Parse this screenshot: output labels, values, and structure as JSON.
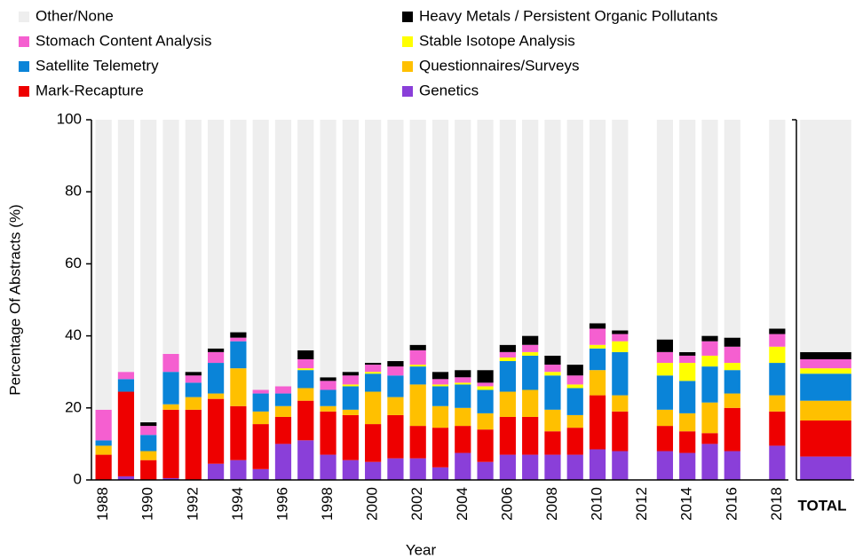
{
  "chart_data": [
    {
      "type": "bar",
      "stacked": true,
      "xlabel": "Year",
      "ylabel": "Percentage Of Abstracts (%)",
      "categories": [
        "1988",
        null,
        "1990",
        null,
        "1992",
        null,
        "1994",
        null,
        "1996",
        null,
        "1998",
        null,
        "2000",
        null,
        "2002",
        null,
        "2004",
        null,
        "2006",
        null,
        "2008",
        null,
        "2010",
        null,
        "2012",
        null,
        "2014",
        null,
        "2016",
        null,
        "2018"
      ],
      "ylim": [
        0,
        100
      ],
      "yticks": [
        0,
        20,
        40,
        60,
        80,
        100
      ],
      "series": [
        {
          "name": "Genetics",
          "color": "#8a3fd9",
          "values": [
            0,
            1,
            0,
            0.5,
            0,
            4.5,
            5.5,
            3,
            10,
            11,
            7,
            5.5,
            5,
            6,
            6,
            3.5,
            7.5,
            5,
            7,
            7,
            7,
            7,
            8.5,
            8,
            null,
            8,
            7.5,
            10,
            8,
            null,
            9.5
          ]
        },
        {
          "name": "Mark-Recapture",
          "color": "#ee0000",
          "values": [
            7,
            23.5,
            5.5,
            19,
            19.5,
            18,
            15,
            12.5,
            7.5,
            11,
            12,
            12.5,
            10.5,
            12,
            9,
            11,
            7.5,
            9,
            10.5,
            10.5,
            6.5,
            7.5,
            15,
            11,
            null,
            7,
            6,
            3,
            12,
            null,
            9.5
          ]
        },
        {
          "name": "Questionnaires/Surveys",
          "color": "#ffc000",
          "values": [
            2.5,
            0,
            2.5,
            1.5,
            3.5,
            1.5,
            10.5,
            3.5,
            3,
            3.5,
            1.5,
            1.5,
            9,
            5,
            11.5,
            6,
            5,
            4.5,
            7,
            7.5,
            6,
            3.5,
            7,
            4.5,
            null,
            4.5,
            5,
            8.5,
            4,
            null,
            4.5
          ]
        },
        {
          "name": "Satellite Telemetry",
          "color": "#0a84d8",
          "values": [
            1.5,
            3.5,
            4.5,
            9,
            4,
            8.5,
            7.5,
            5,
            3.5,
            5,
            4.5,
            6.5,
            5,
            6,
            5,
            5.5,
            6.5,
            6.5,
            8.5,
            9.5,
            9.5,
            7.5,
            6,
            12,
            null,
            9.5,
            9,
            10,
            6.5,
            null,
            9
          ]
        },
        {
          "name": "Stable Isotope Analysis",
          "color": "#ffff00",
          "values": [
            0,
            0,
            0,
            0,
            0,
            0,
            0,
            0,
            0,
            0.5,
            0,
            0.5,
            0.5,
            0,
            0.5,
            0.5,
            0.5,
            1,
            1,
            1,
            1,
            1,
            1,
            3,
            null,
            3.5,
            5,
            3,
            2,
            null,
            4.5
          ]
        },
        {
          "name": "Stomach Content Analysis",
          "color": "#f55fd0",
          "values": [
            8.5,
            2,
            2.5,
            5,
            2,
            3,
            1,
            1,
            2,
            2.5,
            2.5,
            2.5,
            2,
            2.5,
            4,
            1.5,
            1.5,
            1,
            1.5,
            2,
            2,
            2.5,
            4.5,
            2,
            null,
            3,
            2,
            4,
            4.5,
            null,
            3.5
          ]
        },
        {
          "name": "Heavy Metals / Persistent Organic Pollutants",
          "color": "#000000",
          "values": [
            0,
            0,
            1,
            0,
            1,
            1,
            1.5,
            0,
            0,
            2.5,
            1,
            1,
            0.5,
            1.5,
            1.5,
            2,
            2,
            3.5,
            2,
            2.5,
            2.5,
            3,
            1.5,
            1,
            null,
            3.5,
            1,
            1.5,
            2.5,
            null,
            1.5
          ]
        },
        {
          "name": "Other/None",
          "color": "#eeeeee",
          "values": [
            80.5,
            70,
            84,
            65,
            70,
            63.5,
            59,
            75,
            74,
            64,
            71.5,
            70,
            67.5,
            67,
            62.5,
            70,
            69.5,
            69.5,
            62.5,
            60,
            65.5,
            68,
            56.5,
            58.5,
            null,
            61,
            64.5,
            60,
            60.5,
            null,
            58
          ]
        }
      ]
    },
    {
      "type": "bar",
      "stacked": true,
      "categories": [
        "TOTAL"
      ],
      "ylim": [
        0,
        100
      ],
      "series": [
        {
          "color": "#8a3fd9",
          "values": [
            6.5
          ]
        },
        {
          "color": "#ee0000",
          "values": [
            10
          ]
        },
        {
          "color": "#ffc000",
          "values": [
            5.5
          ]
        },
        {
          "color": "#0a84d8",
          "values": [
            7.5
          ]
        },
        {
          "color": "#ffff00",
          "values": [
            1.5
          ]
        },
        {
          "color": "#f55fd0",
          "values": [
            2.5
          ]
        },
        {
          "color": "#000000",
          "values": [
            2
          ]
        },
        {
          "color": "#eeeeee",
          "values": [
            64.5
          ]
        }
      ]
    }
  ]
}
